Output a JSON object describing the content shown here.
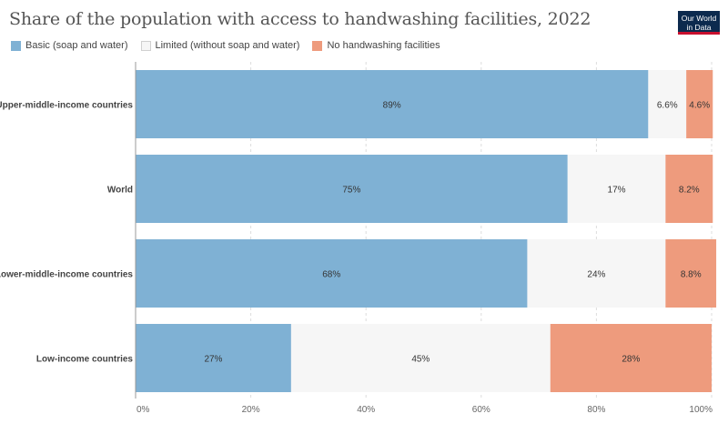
{
  "title": "Share of the population with access to handwashing facilities, 2022",
  "logo": {
    "line1": "Our World",
    "line2": "in Data"
  },
  "colors": {
    "basic": "#7fb1d4",
    "limited": "#f6f6f6",
    "none": "#ee9b7d",
    "grid": "#dddddd",
    "axis": "#999999"
  },
  "legend": [
    {
      "key": "basic",
      "label": "Basic (soap and water)"
    },
    {
      "key": "limited",
      "label": "Limited (without soap and water)"
    },
    {
      "key": "none",
      "label": "No handwashing facilities"
    }
  ],
  "chart_data": {
    "type": "bar",
    "orientation": "horizontal",
    "stacked": true,
    "title": "Share of the population with access to handwashing facilities, 2022",
    "categories": [
      "Upper-middle-income countries",
      "World",
      "Lower-middle-income countries",
      "Low-income countries"
    ],
    "series": [
      {
        "key": "basic",
        "name": "Basic (soap and water)",
        "values": [
          89,
          75,
          68,
          27
        ],
        "labels": [
          "89%",
          "75%",
          "68%",
          "27%"
        ]
      },
      {
        "key": "limited",
        "name": "Limited (without soap and water)",
        "values": [
          6.6,
          17,
          24,
          45
        ],
        "labels": [
          "6.6%",
          "17%",
          "24%",
          "45%"
        ]
      },
      {
        "key": "none",
        "name": "No handwashing facilities",
        "values": [
          4.6,
          8.2,
          8.8,
          28
        ],
        "labels": [
          "4.6%",
          "8.2%",
          "8.8%",
          "28%"
        ]
      }
    ],
    "xlim": [
      0,
      100
    ],
    "xticks": [
      0,
      20,
      40,
      60,
      80,
      100
    ],
    "xtick_labels": [
      "0%",
      "20%",
      "40%",
      "60%",
      "80%",
      "100%"
    ],
    "grid": true,
    "legend_position": "top-left"
  }
}
